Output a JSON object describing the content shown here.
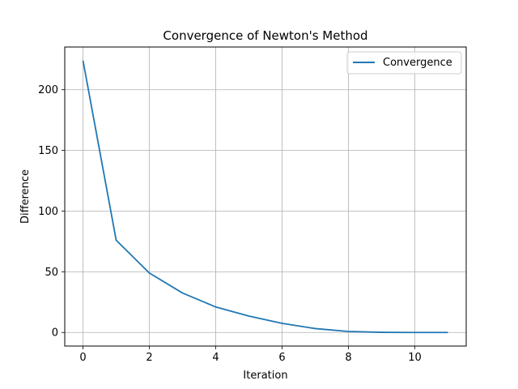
{
  "chart_data": {
    "type": "line",
    "title": "Convergence of Newton's Method",
    "xlabel": "Iteration",
    "ylabel": "Difference",
    "xlim": [
      -0.55,
      11.55
    ],
    "ylim": [
      -11.2,
      235.2
    ],
    "xticks": [
      0,
      2,
      4,
      6,
      8,
      10
    ],
    "yticks": [
      0,
      50,
      100,
      150,
      200
    ],
    "grid": true,
    "legend_position": "top-right",
    "series": [
      {
        "name": "Convergence",
        "color": "#1f77b4",
        "x": [
          0,
          1,
          2,
          3,
          4,
          5,
          6,
          7,
          8,
          9,
          10,
          11
        ],
        "y": [
          224,
          76,
          49,
          32.5,
          21,
          13.5,
          7.5,
          3.2,
          0.8,
          0.1,
          0.0,
          0.0
        ]
      }
    ]
  }
}
